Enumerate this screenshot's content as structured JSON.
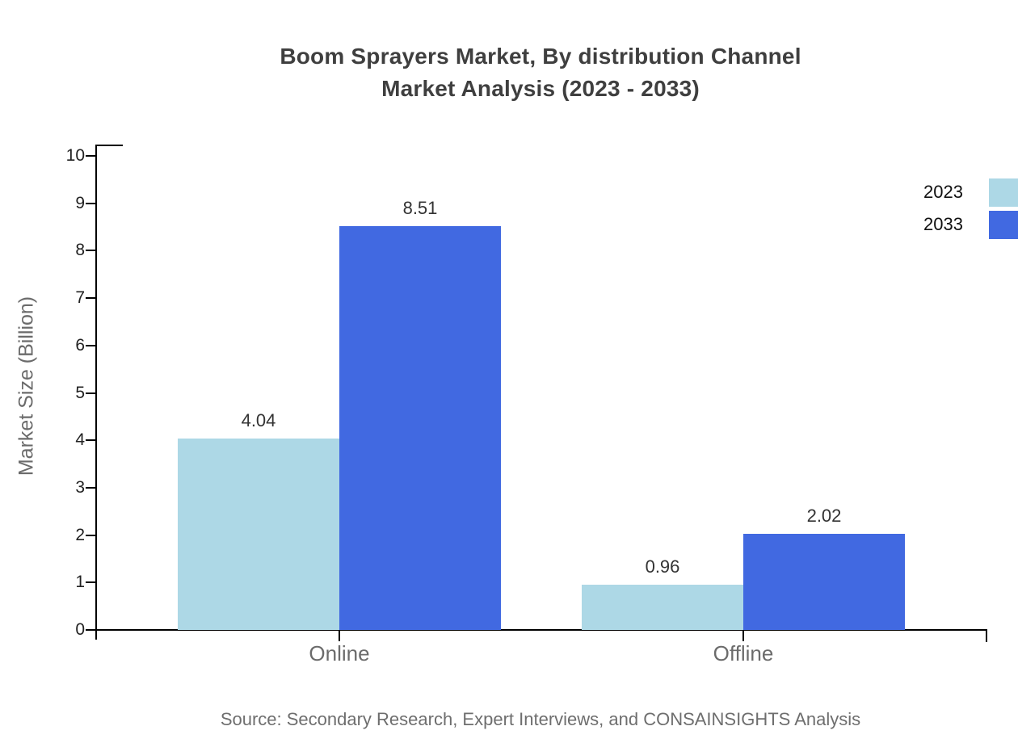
{
  "title": {
    "line1": "Boom Sprayers Market, By distribution Channel",
    "line2": "Market Analysis (2023 - 2033)"
  },
  "source": "Source: Secondary Research, Expert Interviews, and CONSAINSIGHTS Analysis",
  "colors": {
    "series_2023": "#ADD8E6",
    "series_2033": "#4169E1",
    "axis": "#000000",
    "tick_label": "#222222",
    "category_label": "#6B6B6B",
    "value_label": "#333333",
    "title_text": "#3F3F3F",
    "axis_title": "#6B6B6B",
    "source_text": "#6E6E6E",
    "legend_text": "#111111"
  },
  "legend": {
    "position": "top-right",
    "items": [
      {
        "label": "2023",
        "color": "#ADD8E6"
      },
      {
        "label": "2033",
        "color": "#4169E1"
      }
    ]
  },
  "chart_data": {
    "type": "bar",
    "title": "Boom Sprayers Market, By distribution Channel Market Analysis (2023 - 2033)",
    "categories": [
      "Online",
      "Offline"
    ],
    "series": [
      {
        "name": "2023",
        "color": "#ADD8E6",
        "values": [
          4.04,
          0.96
        ]
      },
      {
        "name": "2033",
        "color": "#4169E1",
        "values": [
          8.51,
          2.02
        ]
      }
    ],
    "xlabel": "",
    "ylabel": "Market Size (Billion)",
    "ylim": [
      0,
      10
    ],
    "yticks": [
      0,
      1,
      2,
      3,
      4,
      5,
      6,
      7,
      8,
      9,
      10
    ],
    "grid": false,
    "value_labels": true,
    "legend_position": "top-right"
  }
}
